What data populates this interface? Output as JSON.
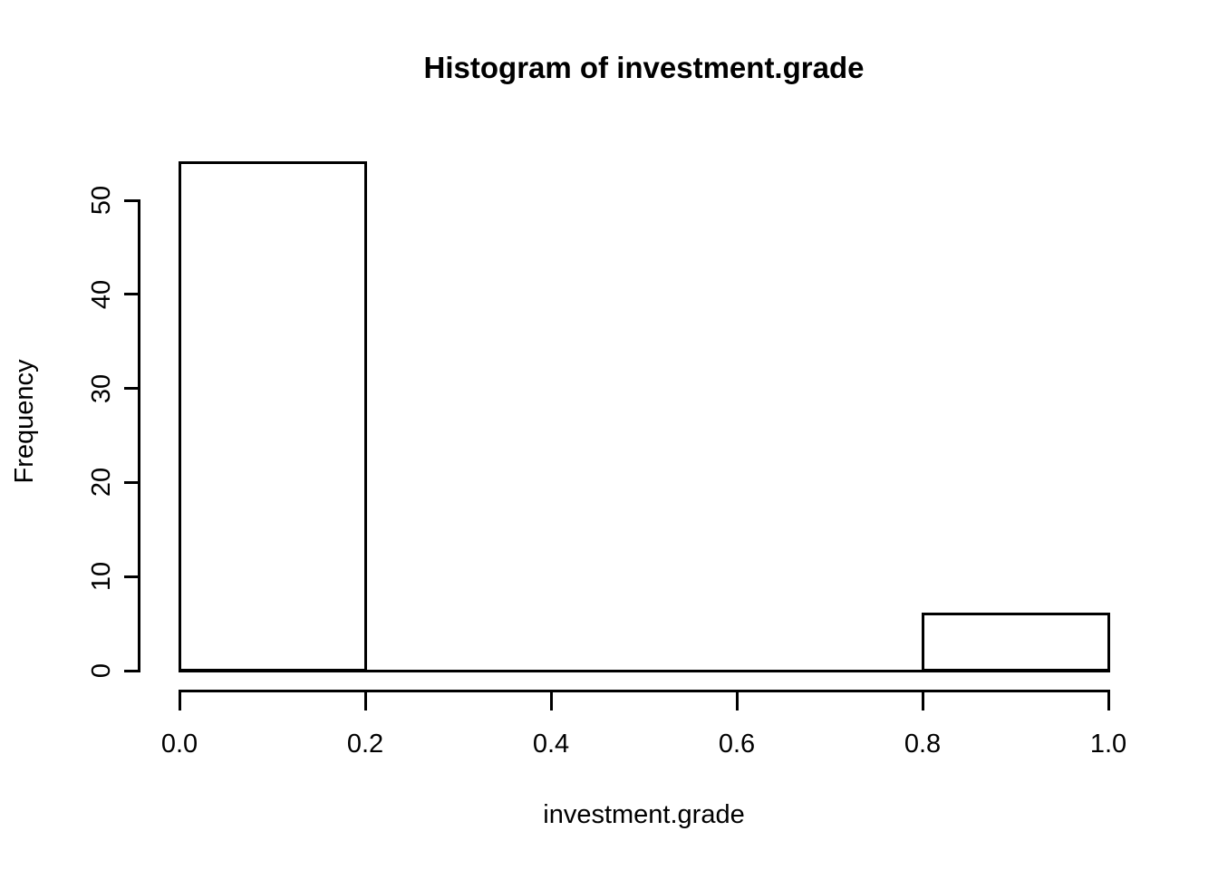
{
  "chart_data": {
    "type": "bar",
    "subtype": "histogram",
    "title": "Histogram of investment.grade",
    "xlabel": "investment.grade",
    "ylabel": "Frequency",
    "bins": [
      {
        "start": 0.0,
        "end": 0.2,
        "count": 54
      },
      {
        "start": 0.2,
        "end": 0.4,
        "count": 0
      },
      {
        "start": 0.4,
        "end": 0.6,
        "count": 0
      },
      {
        "start": 0.6,
        "end": 0.8,
        "count": 0
      },
      {
        "start": 0.8,
        "end": 1.0,
        "count": 6
      }
    ],
    "xlim": [
      0.0,
      1.0
    ],
    "ylim": [
      0,
      50
    ],
    "x_ticks": [
      "0.0",
      "0.2",
      "0.4",
      "0.6",
      "0.8",
      "1.0"
    ],
    "x_tick_values": [
      0.0,
      0.2,
      0.4,
      0.6,
      0.8,
      1.0
    ],
    "y_ticks": [
      "0",
      "10",
      "20",
      "30",
      "40",
      "50"
    ],
    "y_tick_values": [
      0,
      10,
      20,
      30,
      40,
      50
    ],
    "grid": "off",
    "legend": "none",
    "bar_fill": "#ffffff",
    "bar_border": "#000000",
    "axis_color": "#000000",
    "text_color": "#000000",
    "background": "#ffffff"
  }
}
